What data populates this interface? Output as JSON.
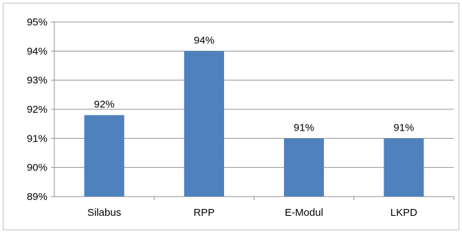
{
  "chart_data": {
    "type": "bar",
    "categories": [
      "Silabus",
      "RPP",
      "E-Modul",
      "LKPD"
    ],
    "values": [
      91.8,
      94.0,
      91.0,
      91.0
    ],
    "data_labels": [
      "92%",
      "94%",
      "91%",
      "91%"
    ],
    "title": "",
    "xlabel": "",
    "ylabel": "",
    "ylim": [
      89,
      95
    ],
    "yticks": [
      89,
      90,
      91,
      92,
      93,
      94,
      95
    ],
    "ytick_labels": [
      "89%",
      "90%",
      "91%",
      "92%",
      "93%",
      "94%",
      "95%"
    ],
    "grid": true,
    "legend": "none",
    "bar_color": "#4f81bd",
    "grid_color": "#8c8c8c"
  }
}
